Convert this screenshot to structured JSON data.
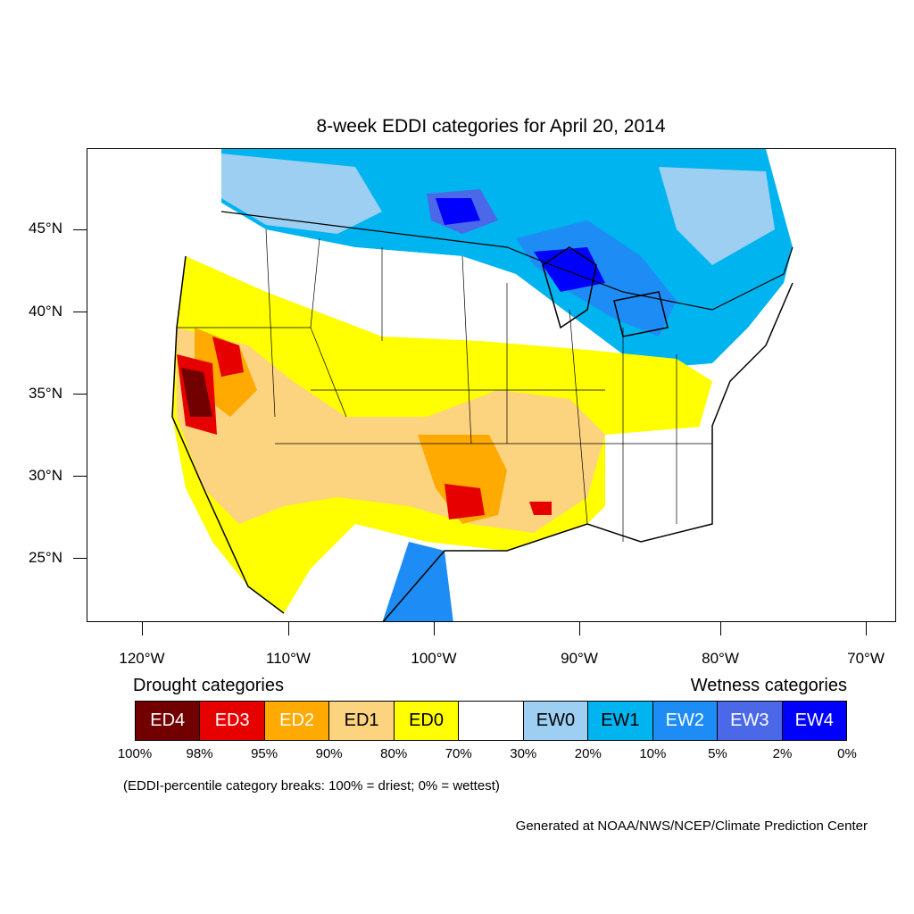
{
  "title": "8-week EDDI categories for April 20, 2014",
  "lat_labels": [
    "45°N",
    "40°N",
    "35°N",
    "30°N",
    "25°N"
  ],
  "lon_labels": [
    "120°W",
    "110°W",
    "100°W",
    "90°W",
    "80°W",
    "70°W"
  ],
  "legend": {
    "drought_heading": "Drought categories",
    "wetness_heading": "Wetness categories",
    "categories": [
      {
        "label": "ED4",
        "color": "#730000",
        "text_color": "#ffffff"
      },
      {
        "label": "ED3",
        "color": "#e60000",
        "text_color": "#ffffff"
      },
      {
        "label": "ED2",
        "color": "#ffaa00",
        "text_color": "#ffffff"
      },
      {
        "label": "ED1",
        "color": "#fcd37f",
        "text_color": "#000000"
      },
      {
        "label": "ED0",
        "color": "#ffff00",
        "text_color": "#000000"
      },
      {
        "label": "",
        "color": "#ffffff",
        "text_color": "#000000"
      },
      {
        "label": "EW0",
        "color": "#9ccff2",
        "text_color": "#000000"
      },
      {
        "label": "EW1",
        "color": "#00b4f0",
        "text_color": "#000000"
      },
      {
        "label": "EW2",
        "color": "#1e8cf5",
        "text_color": "#ffffff"
      },
      {
        "label": "EW3",
        "color": "#4b68e8",
        "text_color": "#ffffff"
      },
      {
        "label": "EW4",
        "color": "#0000ff",
        "text_color": "#ffffff"
      }
    ],
    "breaks": [
      "100%",
      "98%",
      "95%",
      "90%",
      "80%",
      "70%",
      "30%",
      "20%",
      "10%",
      "5%",
      "2%",
      "0%"
    ]
  },
  "note": "(EDDI-percentile category breaks: 100% = driest; 0% = wettest)",
  "credit": "Generated at NOAA/NWS/NCEP/Climate Prediction Center"
}
